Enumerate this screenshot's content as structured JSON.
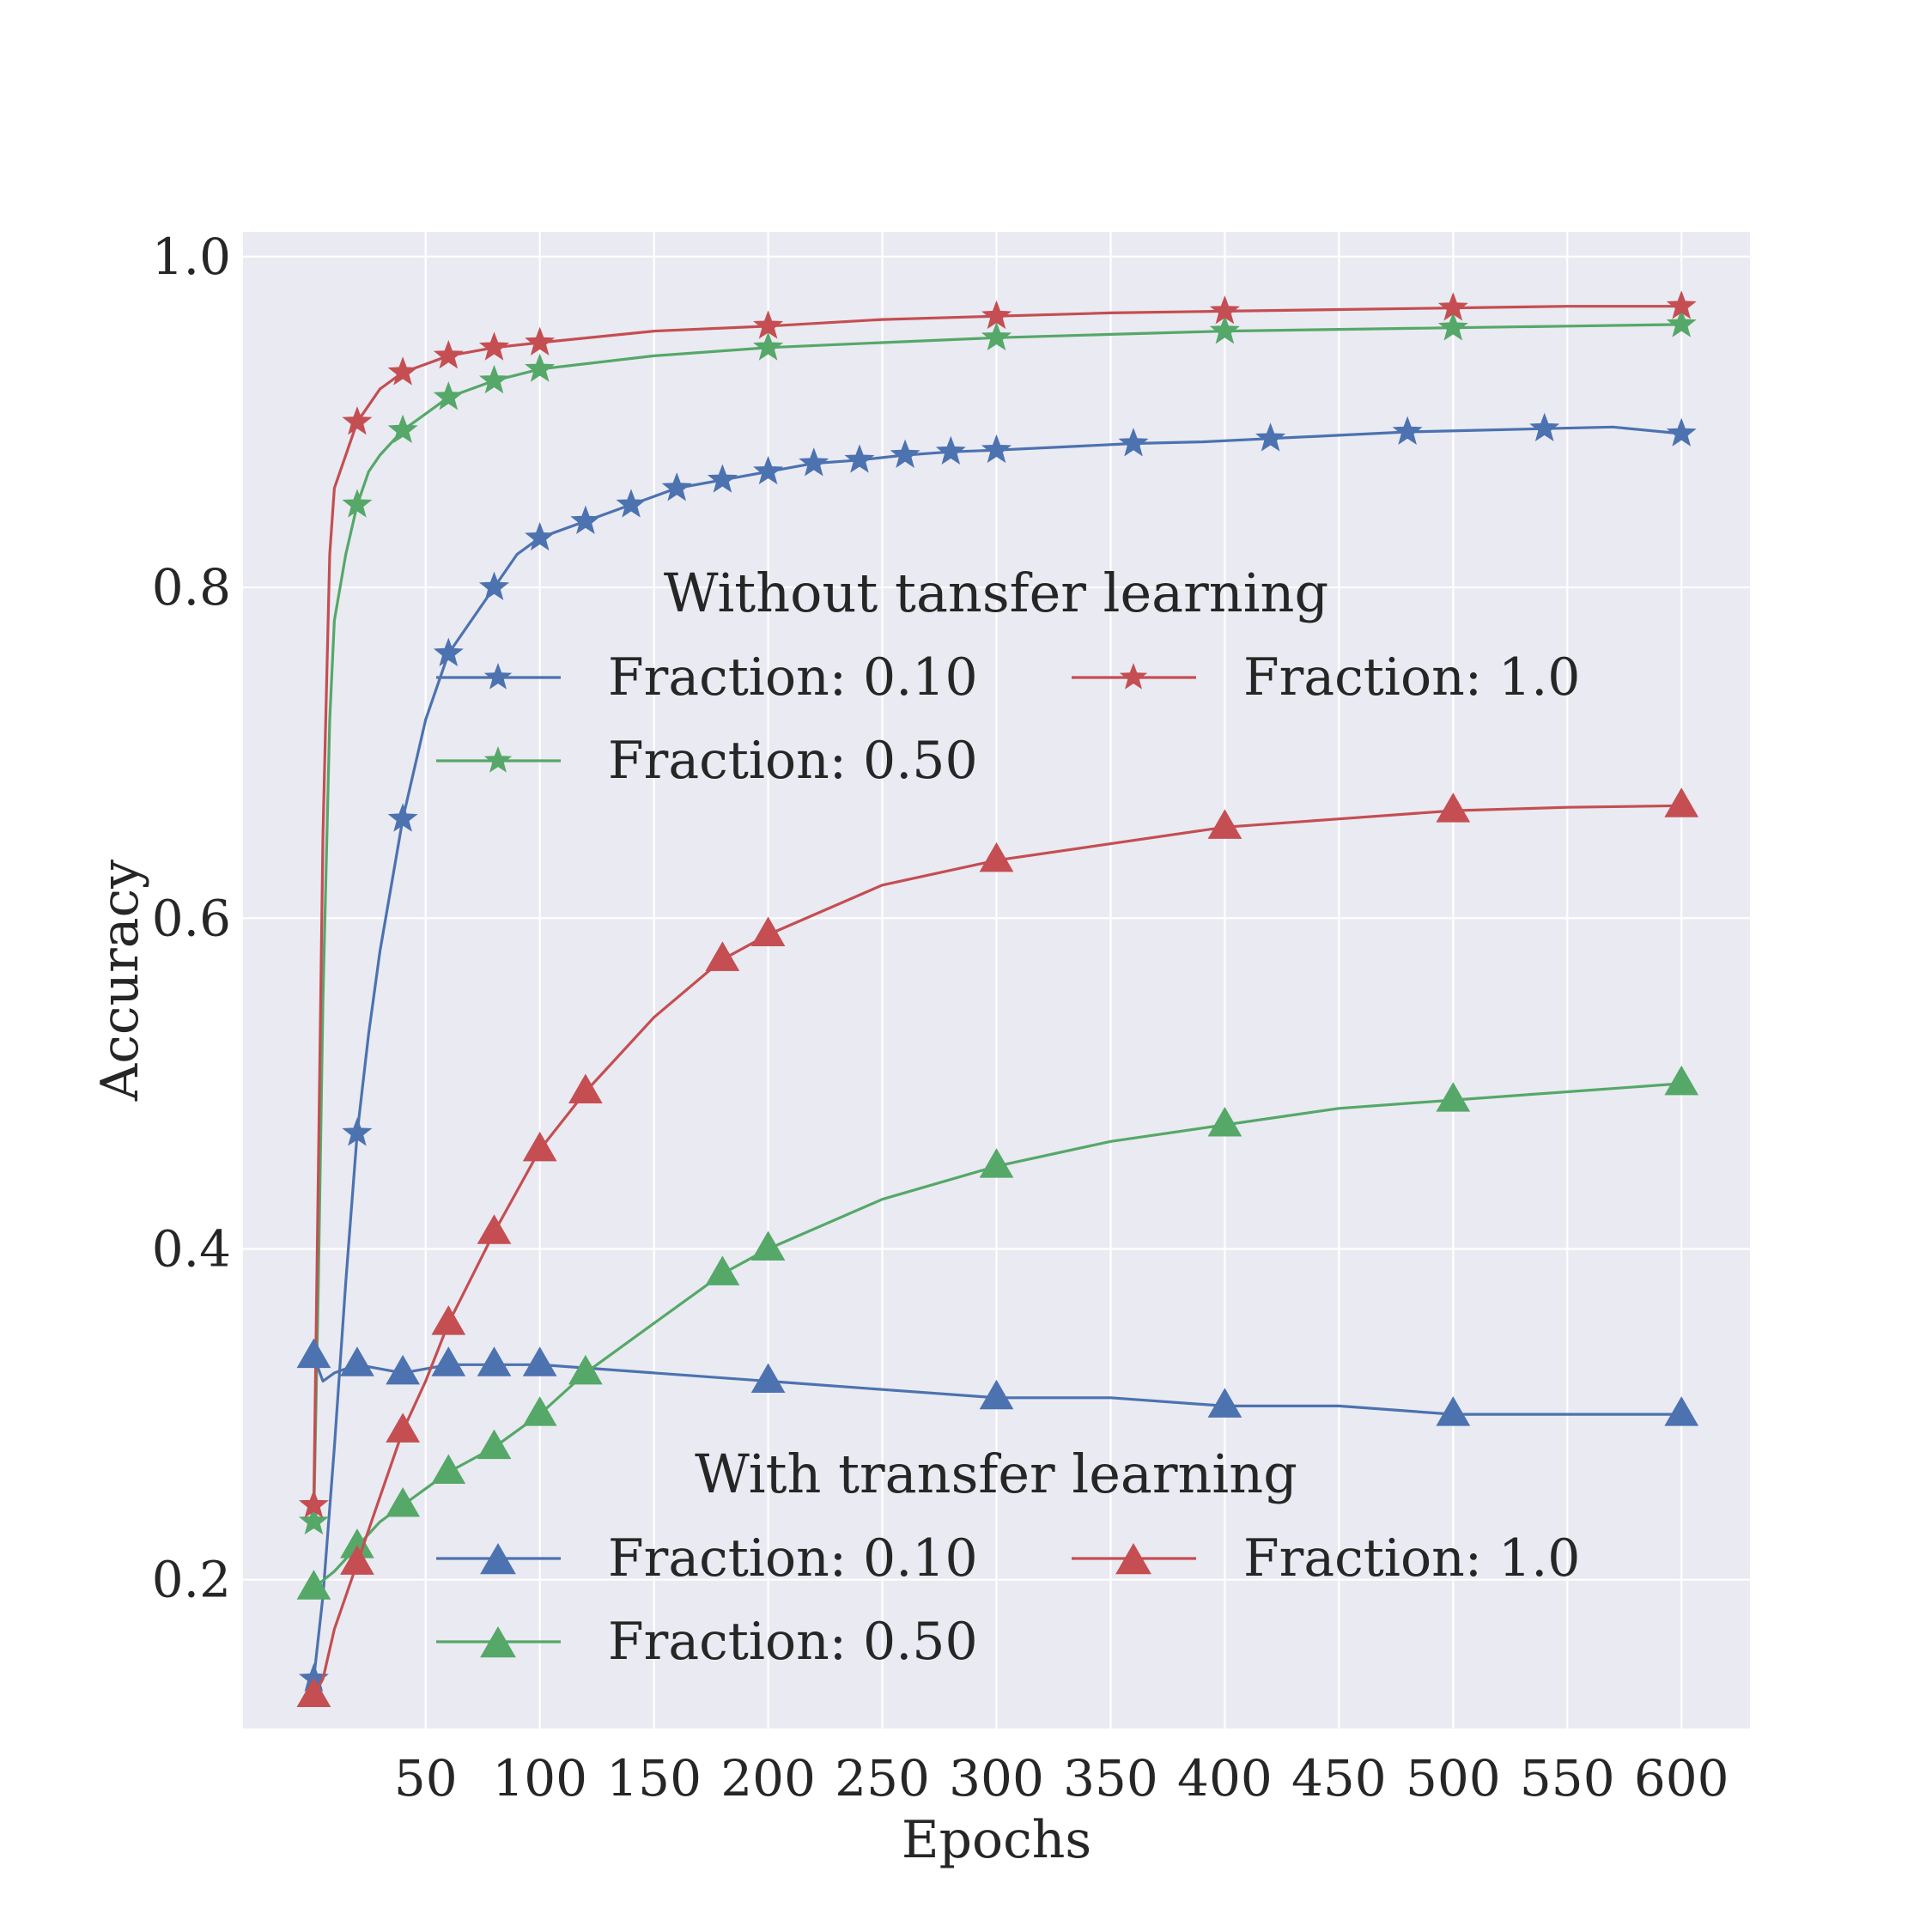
{
  "chart_data": {
    "type": "line",
    "title": "",
    "xlabel": "Epochs",
    "ylabel": "Accuracy",
    "xlim": [
      -30,
      630
    ],
    "ylim": [
      0.11,
      1.015
    ],
    "x_ticks": [
      50,
      100,
      150,
      200,
      250,
      300,
      350,
      400,
      450,
      500,
      550,
      600
    ],
    "y_ticks": [
      0.2,
      0.4,
      0.6,
      0.8,
      1.0
    ],
    "x_tick_labels": [
      "50",
      "100",
      "150",
      "200",
      "250",
      "300",
      "350",
      "400",
      "450",
      "500",
      "550",
      "600"
    ],
    "y_tick_labels": [
      "0.2",
      "0.4",
      "0.6",
      "0.8",
      "1.0"
    ],
    "grid": true,
    "colors": {
      "blue": "#4c72b0",
      "green": "#55a868",
      "red": "#c44e52",
      "background": "#eaeaf2"
    },
    "legends": [
      {
        "title": "Without tansfer learning",
        "placement": "center",
        "marker": "star",
        "entries": [
          "Fraction: 0.10",
          "Fraction: 0.50",
          "Fraction: 1.0"
        ]
      },
      {
        "title": "With transfer learning",
        "placement": "lower-center",
        "marker": "triangle",
        "entries": [
          "Fraction: 0.10",
          "Fraction: 0.50",
          "Fraction: 1.0"
        ]
      }
    ],
    "series": [
      {
        "name": "Fraction: 0.10",
        "group": "Without tansfer learning",
        "color": "#4c72b0",
        "marker": "star",
        "x": [
          1,
          5,
          10,
          15,
          20,
          25,
          30,
          35,
          40,
          45,
          50,
          60,
          70,
          80,
          90,
          100,
          120,
          140,
          160,
          180,
          200,
          220,
          240,
          260,
          280,
          300,
          330,
          360,
          390,
          420,
          450,
          480,
          510,
          540,
          570,
          600
        ],
        "y": [
          0.14,
          0.19,
          0.28,
          0.38,
          0.47,
          0.53,
          0.58,
          0.62,
          0.66,
          0.69,
          0.72,
          0.76,
          0.78,
          0.8,
          0.82,
          0.83,
          0.84,
          0.85,
          0.86,
          0.865,
          0.87,
          0.875,
          0.877,
          0.88,
          0.882,
          0.883,
          0.885,
          0.887,
          0.888,
          0.89,
          0.892,
          0.894,
          0.895,
          0.896,
          0.897,
          0.893
        ]
      },
      {
        "name": "Fraction: 0.50",
        "group": "Without tansfer learning",
        "color": "#55a868",
        "marker": "star",
        "x": [
          1,
          3,
          5,
          8,
          10,
          15,
          20,
          25,
          30,
          40,
          50,
          60,
          80,
          100,
          150,
          200,
          250,
          300,
          350,
          400,
          450,
          500,
          550,
          600
        ],
        "y": [
          0.235,
          0.38,
          0.55,
          0.72,
          0.78,
          0.82,
          0.85,
          0.87,
          0.88,
          0.895,
          0.905,
          0.915,
          0.925,
          0.932,
          0.94,
          0.945,
          0.948,
          0.951,
          0.953,
          0.955,
          0.956,
          0.957,
          0.958,
          0.959
        ]
      },
      {
        "name": "Fraction: 1.0",
        "group": "Without tansfer learning",
        "color": "#c44e52",
        "marker": "star",
        "x": [
          1,
          3,
          5,
          8,
          10,
          15,
          20,
          25,
          30,
          40,
          50,
          60,
          80,
          100,
          150,
          200,
          250,
          300,
          350,
          400,
          450,
          500,
          550,
          600
        ],
        "y": [
          0.245,
          0.45,
          0.65,
          0.82,
          0.86,
          0.88,
          0.9,
          0.91,
          0.92,
          0.93,
          0.935,
          0.94,
          0.945,
          0.948,
          0.955,
          0.958,
          0.962,
          0.964,
          0.966,
          0.967,
          0.968,
          0.969,
          0.97,
          0.97
        ]
      },
      {
        "name": "Fraction: 0.10",
        "group": "With transfer learning",
        "color": "#4c72b0",
        "marker": "triangle",
        "x": [
          1,
          5,
          10,
          20,
          40,
          60,
          80,
          100,
          150,
          200,
          250,
          300,
          350,
          400,
          450,
          500,
          550,
          600
        ],
        "y": [
          0.335,
          0.32,
          0.325,
          0.33,
          0.325,
          0.33,
          0.33,
          0.33,
          0.325,
          0.32,
          0.315,
          0.31,
          0.31,
          0.305,
          0.305,
          0.3,
          0.3,
          0.3
        ]
      },
      {
        "name": "Fraction: 0.50",
        "group": "With transfer learning",
        "color": "#55a868",
        "marker": "triangle",
        "x": [
          1,
          10,
          20,
          30,
          40,
          50,
          60,
          80,
          100,
          120,
          150,
          180,
          200,
          250,
          300,
          350,
          400,
          450,
          500,
          550,
          600
        ],
        "y": [
          0.195,
          0.205,
          0.22,
          0.235,
          0.245,
          0.255,
          0.265,
          0.28,
          0.3,
          0.325,
          0.355,
          0.385,
          0.4,
          0.43,
          0.45,
          0.465,
          0.475,
          0.485,
          0.49,
          0.495,
          0.5
        ]
      },
      {
        "name": "Fraction: 1.0",
        "group": "With transfer learning",
        "color": "#c44e52",
        "marker": "triangle",
        "x": [
          1,
          5,
          10,
          20,
          30,
          40,
          50,
          60,
          80,
          100,
          120,
          150,
          180,
          200,
          250,
          300,
          350,
          400,
          450,
          500,
          550,
          600
        ],
        "y": [
          0.13,
          0.14,
          0.17,
          0.21,
          0.25,
          0.29,
          0.32,
          0.355,
          0.41,
          0.46,
          0.495,
          0.54,
          0.575,
          0.59,
          0.62,
          0.635,
          0.645,
          0.655,
          0.66,
          0.665,
          0.667,
          0.668
        ]
      }
    ]
  }
}
